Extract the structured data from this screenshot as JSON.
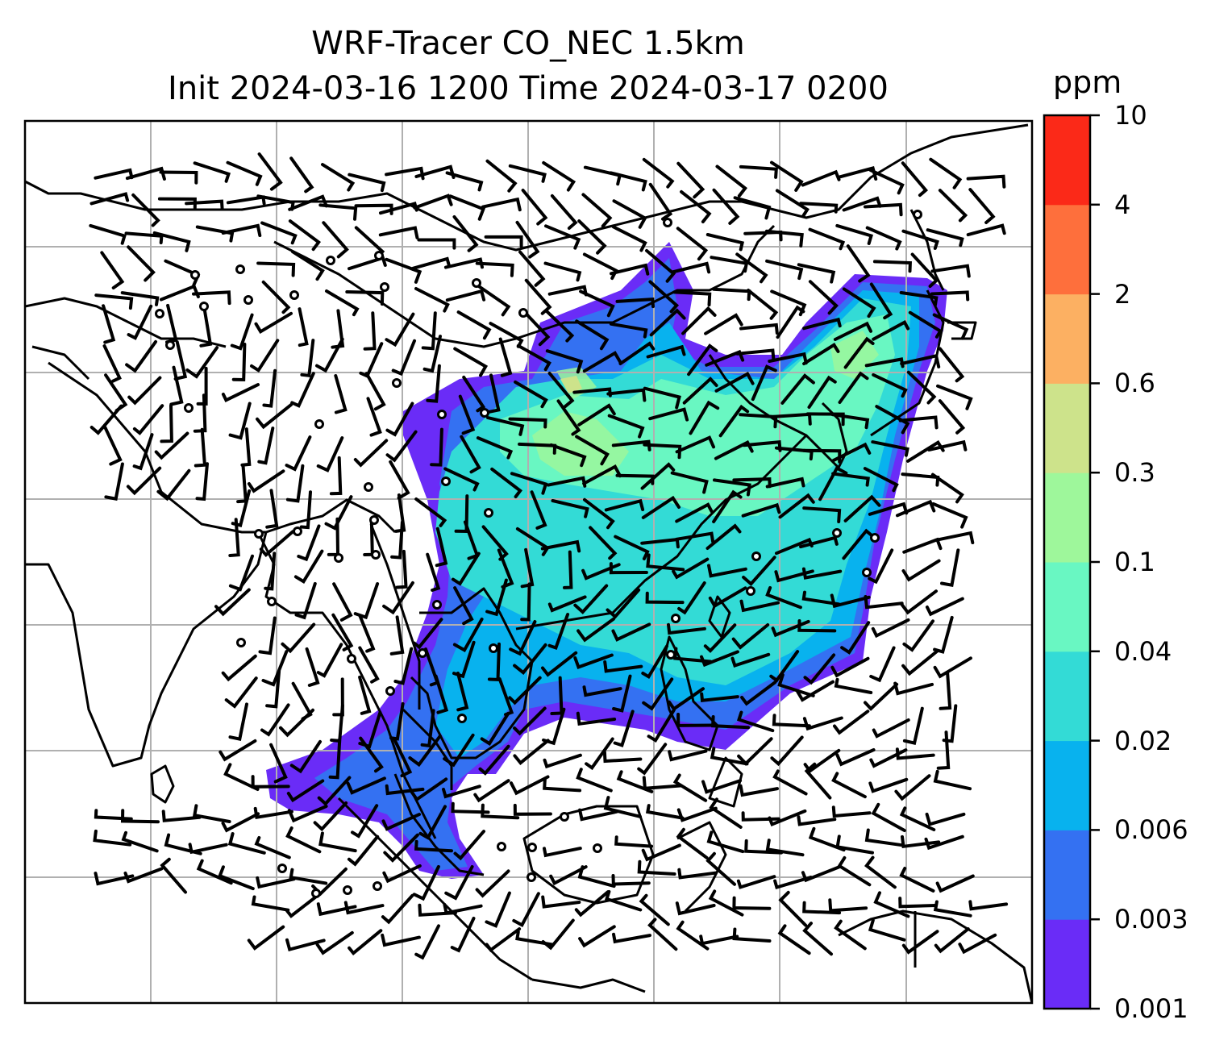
{
  "title_line1": "WRF-Tracer CO_NEC 1.5km",
  "title_line2": "Init 2024-03-16 1200 Time 2024-03-17 0200",
  "colorbar": {
    "unit": "ppm",
    "levels": [
      "0.001",
      "0.003",
      "0.006",
      "0.02",
      "0.04",
      "0.1",
      "0.3",
      "0.6",
      "2",
      "4",
      "10"
    ],
    "colors": [
      "#6a2cf7",
      "#3471f2",
      "#08b2ee",
      "#33dbd6",
      "#69f7c2",
      "#9ef79b",
      "#cde38b",
      "#fcb062",
      "#fe6f3c",
      "#fb2918"
    ]
  },
  "map": {
    "gridline_color": "#b0b0b0",
    "coastline_color": "#000000",
    "wind_barb_color": "#000000"
  }
}
